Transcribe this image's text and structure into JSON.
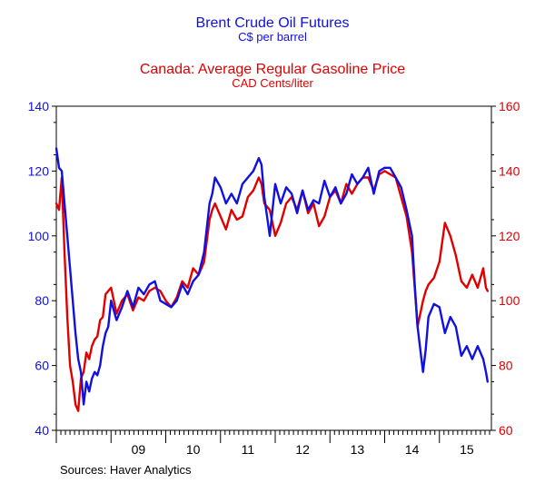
{
  "chart_data": {
    "type": "line",
    "titles": [
      {
        "title": "Brent Crude Oil Futures",
        "subtitle": "C$ per barrel",
        "color": "#1010e0"
      },
      {
        "title": "Canada: Average Regular Gasoline Price",
        "subtitle": "CAD Cents/liter",
        "color": "#e00000"
      }
    ],
    "source": "Sources:   Haver Analytics",
    "x_tick_labels": [
      "09",
      "10",
      "11",
      "12",
      "13",
      "14",
      "15"
    ],
    "xlim": [
      2008.0,
      2015.95
    ],
    "y_left": {
      "lim": [
        40,
        140
      ],
      "ticks": [
        "40",
        "60",
        "80",
        "100",
        "120",
        "140"
      ],
      "color": "#1010e0"
    },
    "y_right": {
      "lim": [
        60,
        160
      ],
      "ticks": [
        "60",
        "80",
        "100",
        "120",
        "140",
        "160"
      ],
      "color": "#e00000"
    },
    "grid": false,
    "series": [
      {
        "name": "Brent Crude Oil Futures",
        "axis": "left",
        "color": "#1010e0",
        "x": [
          2008.0,
          2008.05,
          2008.1,
          2008.15,
          2008.2,
          2008.25,
          2008.3,
          2008.35,
          2008.4,
          2008.45,
          2008.5,
          2008.55,
          2008.6,
          2008.65,
          2008.7,
          2008.75,
          2008.8,
          2008.85,
          2008.9,
          2008.95,
          2009.0,
          2009.1,
          2009.2,
          2009.3,
          2009.4,
          2009.5,
          2009.6,
          2009.7,
          2009.8,
          2009.9,
          2010.0,
          2010.1,
          2010.2,
          2010.3,
          2010.4,
          2010.5,
          2010.6,
          2010.7,
          2010.8,
          2010.85,
          2010.9,
          2011.0,
          2011.1,
          2011.2,
          2011.3,
          2011.4,
          2011.5,
          2011.6,
          2011.7,
          2011.75,
          2011.8,
          2011.9,
          2012.0,
          2012.1,
          2012.2,
          2012.3,
          2012.4,
          2012.5,
          2012.6,
          2012.7,
          2012.8,
          2012.9,
          2013.0,
          2013.1,
          2013.2,
          2013.3,
          2013.4,
          2013.5,
          2013.6,
          2013.7,
          2013.8,
          2013.9,
          2014.0,
          2014.1,
          2014.2,
          2014.3,
          2014.4,
          2014.5,
          2014.55,
          2014.6,
          2014.7,
          2014.75,
          2014.8,
          2014.9,
          2015.0,
          2015.1,
          2015.2,
          2015.3,
          2015.4,
          2015.5,
          2015.6,
          2015.7,
          2015.8,
          2015.85,
          2015.88
        ],
        "values": [
          127,
          121,
          120,
          110,
          100,
          90,
          80,
          70,
          62,
          58,
          48,
          55,
          52,
          56,
          58,
          57,
          60,
          66,
          70,
          72,
          80,
          74,
          78,
          83,
          78,
          84,
          82,
          85,
          86,
          80,
          79,
          78,
          80,
          85,
          82,
          86,
          88,
          95,
          110,
          113,
          118,
          115,
          110,
          113,
          110,
          116,
          118,
          120,
          124,
          122,
          112,
          100,
          116,
          110,
          115,
          113,
          107,
          114,
          108,
          111,
          110,
          117,
          112,
          115,
          110,
          113,
          119,
          116,
          118,
          121,
          113,
          120,
          121,
          121,
          118,
          115,
          108,
          100,
          85,
          72,
          58,
          65,
          75,
          79,
          78,
          70,
          75,
          72,
          63,
          66,
          62,
          66,
          62,
          58,
          55
        ]
      },
      {
        "name": "Canada: Average Regular Gasoline Price",
        "axis": "right",
        "color": "#e00000",
        "x": [
          2008.0,
          2008.05,
          2008.1,
          2008.15,
          2008.2,
          2008.25,
          2008.3,
          2008.35,
          2008.4,
          2008.45,
          2008.5,
          2008.55,
          2008.6,
          2008.65,
          2008.7,
          2008.75,
          2008.8,
          2008.85,
          2008.9,
          2008.95,
          2009.0,
          2009.1,
          2009.2,
          2009.3,
          2009.4,
          2009.5,
          2009.6,
          2009.7,
          2009.8,
          2009.9,
          2010.0,
          2010.1,
          2010.2,
          2010.3,
          2010.4,
          2010.5,
          2010.6,
          2010.7,
          2010.8,
          2010.85,
          2010.9,
          2011.0,
          2011.1,
          2011.2,
          2011.3,
          2011.4,
          2011.5,
          2011.6,
          2011.7,
          2011.75,
          2011.8,
          2011.9,
          2012.0,
          2012.1,
          2012.2,
          2012.3,
          2012.4,
          2012.5,
          2012.6,
          2012.7,
          2012.8,
          2012.9,
          2013.0,
          2013.1,
          2013.2,
          2013.3,
          2013.4,
          2013.5,
          2013.6,
          2013.7,
          2013.8,
          2013.9,
          2014.0,
          2014.1,
          2014.2,
          2014.3,
          2014.4,
          2014.5,
          2014.55,
          2014.6,
          2014.7,
          2014.75,
          2014.8,
          2014.9,
          2015.0,
          2015.1,
          2015.2,
          2015.3,
          2015.4,
          2015.5,
          2015.6,
          2015.7,
          2015.8,
          2015.85,
          2015.88
        ],
        "values": [
          130,
          128,
          138,
          115,
          95,
          80,
          75,
          68,
          66,
          76,
          78,
          84,
          82,
          86,
          88,
          89,
          94,
          95,
          102,
          103,
          104,
          96,
          100,
          102,
          97,
          101,
          100,
          103,
          104,
          103,
          100,
          98,
          101,
          106,
          104,
          110,
          108,
          112,
          125,
          128,
          130,
          126,
          122,
          128,
          125,
          126,
          132,
          134,
          138,
          136,
          130,
          128,
          120,
          124,
          130,
          132,
          128,
          134,
          127,
          130,
          123,
          126,
          132,
          134,
          130,
          136,
          133,
          136,
          138,
          138,
          134,
          139,
          140,
          139,
          138,
          132,
          126,
          115,
          104,
          92,
          100,
          103,
          105,
          107,
          112,
          124,
          120,
          114,
          106,
          104,
          108,
          104,
          110,
          104,
          103
        ]
      }
    ]
  }
}
